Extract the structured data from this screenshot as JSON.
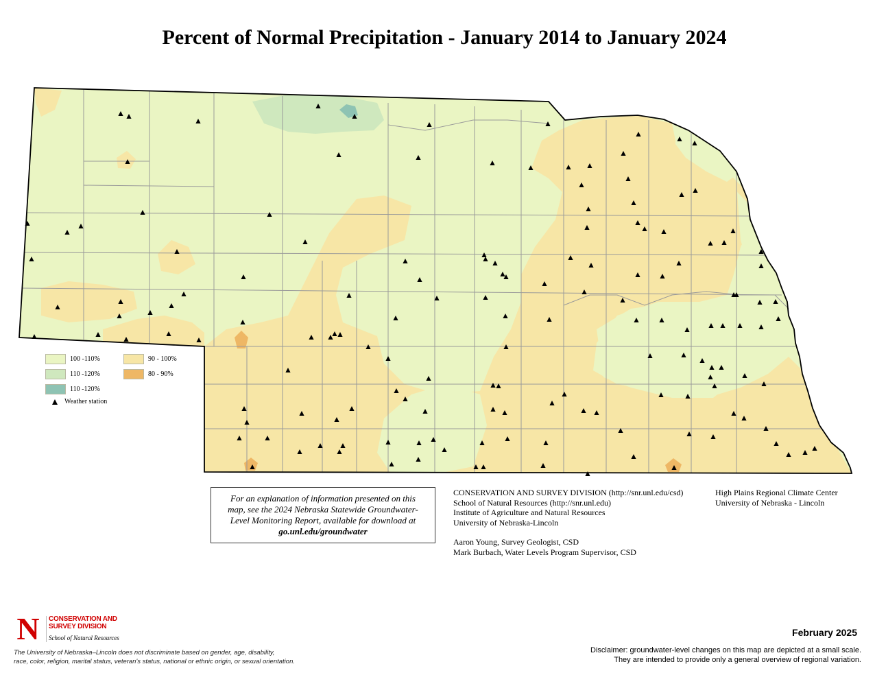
{
  "title": "Percent of Normal Precipitation - January 2014 to January 2024",
  "colors": {
    "range_100_110": "#eaf5c3",
    "range_110_120_light": "#cfe8be",
    "range_110_120_dark": "#8ec3b3",
    "range_90_100": "#f7e6a6",
    "range_80_90": "#eeb765",
    "county_line": "#9a9a9a",
    "state_border": "#000000"
  },
  "legend": {
    "items": [
      {
        "label": "100 -110%",
        "color": "#eaf5c3"
      },
      {
        "label": "110 -120%",
        "color": "#cfe8be"
      },
      {
        "label": "110 -120%",
        "color": "#8ec3b3"
      },
      {
        "label": "90 - 100%",
        "color": "#f7e6a6"
      },
      {
        "label": "80 - 90%",
        "color": "#eeb765"
      }
    ],
    "station_label": "Weather station"
  },
  "infobox": {
    "line1": "For an explanation of information presented on this",
    "line2": "map, see the 2024 Nebraska Statewide Groundwater-",
    "line3": "Level Monitoring Report, available for download at",
    "url": "go.unl.edu/groundwater"
  },
  "credits": {
    "csd": "CONSERVATION AND SURVEY DIVISION (http://snr.unl.edu/csd)",
    "snr": "School of Natural Resources (http://snr.unl.edu)",
    "ianr": "Institute of Agriculture and Natural Resources",
    "unl": "University of Nebraska-Lincoln",
    "author1": "Aaron Young, Survey Geologist, CSD",
    "author2": "Mark Burbach, Water Levels Program Supervisor, CSD",
    "hprcc1": "High Plains Regional Climate Center",
    "hprcc2": "University of Nebraska - Lincoln"
  },
  "logo": {
    "letter": "N",
    "name_line1": "CONSERVATION AND",
    "name_line2": "SURVEY DIVISION",
    "subtitle": "School of Natural Resources"
  },
  "nondiscrimination": {
    "line1": "The University of Nebraska–Lincoln does not discriminate based on gender, age, disability,",
    "line2": "race, color, religion, marital status, veteran's status, national or ethnic origin, or sexual orientation."
  },
  "date": "February 2025",
  "disclaimer": {
    "line1": "Disclaimer: groundwater-level changes on this map are depicted at a small scale.",
    "line2": "They are intended to provide only a general overview of regional variation."
  }
}
